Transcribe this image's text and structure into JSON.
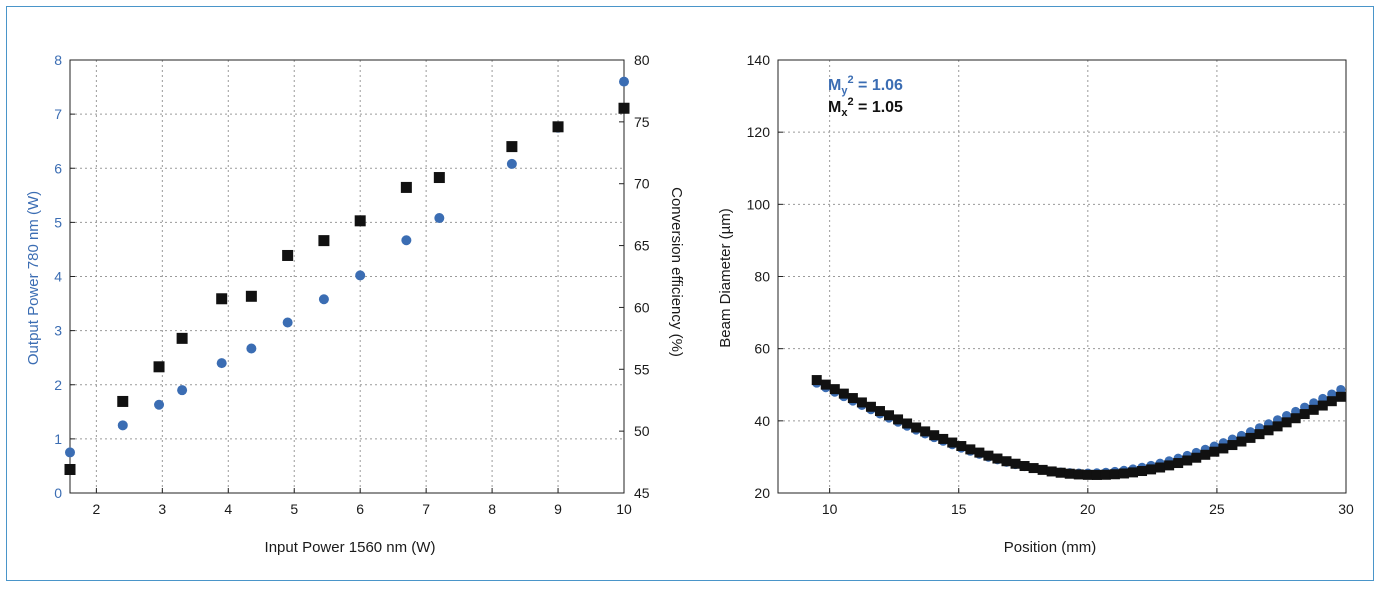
{
  "colors": {
    "blue": "#3b6db3",
    "black": "#111111",
    "frame": "#4a95c9"
  },
  "chart_data": [
    {
      "type": "scatter",
      "xlabel": "Input Power 1560 nm (W)",
      "ylabel": "Output Power 780 nm (W)",
      "y2label": "Conversion efficiency (%)",
      "xlim": [
        1.6,
        10
      ],
      "ylim": [
        0,
        8
      ],
      "y2lim": [
        45,
        80
      ],
      "xticks": [
        "2",
        "3",
        "4",
        "5",
        "6",
        "7",
        "8",
        "9",
        "10"
      ],
      "yticks": [
        "0",
        "1",
        "2",
        "3",
        "4",
        "5",
        "6",
        "7",
        "8"
      ],
      "y2ticks": [
        "45",
        "50",
        "55",
        "60",
        "65",
        "70",
        "75",
        "80"
      ],
      "grid": true,
      "series": [
        {
          "axis": "left",
          "marker": "circle",
          "color": "#3b6db3",
          "x": [
            1.6,
            2.4,
            2.95,
            3.3,
            3.9,
            4.35,
            4.9,
            5.45,
            6.0,
            6.7,
            7.2,
            8.3,
            9.0,
            10.0
          ],
          "y": [
            0.75,
            1.25,
            1.63,
            1.9,
            2.4,
            2.67,
            3.15,
            3.58,
            4.02,
            4.67,
            5.08,
            6.08,
            6.75,
            7.6
          ]
        },
        {
          "axis": "right",
          "marker": "square",
          "color": "#111111",
          "x": [
            1.6,
            2.4,
            2.95,
            3.3,
            3.9,
            4.35,
            4.9,
            5.45,
            6.0,
            6.7,
            7.2,
            8.3,
            9.0,
            10.0
          ],
          "y": [
            46.9,
            52.4,
            55.2,
            57.5,
            60.7,
            60.9,
            64.2,
            65.4,
            67.0,
            69.7,
            70.5,
            73.0,
            74.6,
            76.1
          ]
        }
      ]
    },
    {
      "type": "scatter",
      "xlabel": "Position (mm)",
      "ylabel": "Beam Diameter (µm)",
      "xlim": [
        8,
        30
      ],
      "ylim": [
        20,
        140
      ],
      "xticks": [
        "10",
        "15",
        "20",
        "25",
        "30"
      ],
      "yticks": [
        "20",
        "40",
        "60",
        "80",
        "100",
        "120",
        "140"
      ],
      "grid": true,
      "annotations": [
        {
          "base": "M",
          "sub": "y",
          "sup": "2",
          "value": " = 1.06",
          "color": "#3b6db3"
        },
        {
          "base": "M",
          "sub": "x",
          "sup": "2",
          "value": " = 1.05",
          "color": "#111111"
        }
      ],
      "series": [
        {
          "marker": "circle",
          "color": "#3b6db3",
          "waist": 19.9,
          "w0": 25.5,
          "m2": 1.06,
          "x_start": 9.5,
          "x_end": 29.8,
          "x_step": 0.35
        },
        {
          "marker": "square",
          "color": "#111111",
          "waist": 20.3,
          "w0": 25.0,
          "m2": 1.05,
          "x_start": 9.5,
          "x_end": 29.8,
          "x_step": 0.35
        }
      ]
    }
  ]
}
